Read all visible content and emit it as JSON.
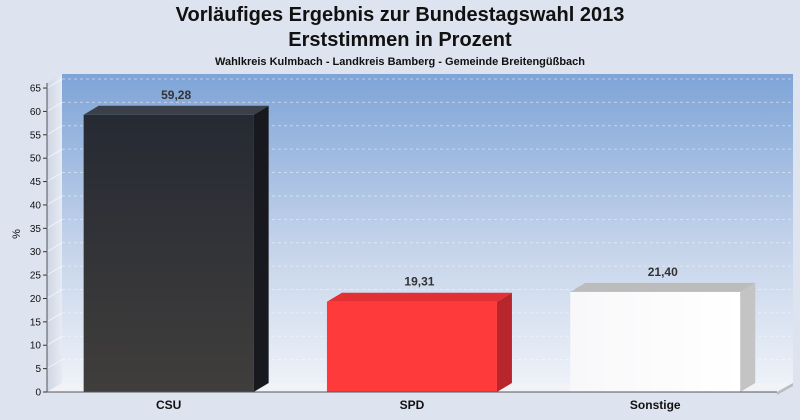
{
  "chart_data": {
    "type": "bar",
    "title": "Vorläufiges Ergebnis zur Bundestagswahl 2013",
    "title2": "Erststimmen in Prozent",
    "subtitle": "Wahlkreis Kulmbach - Landkreis Bamberg - Gemeinde Breitengüßbach",
    "ylabel": "%",
    "ylim": [
      0,
      68
    ],
    "yticks": [
      "0",
      "5",
      "10",
      "15",
      "20",
      "25",
      "30",
      "35",
      "40",
      "45",
      "50",
      "55",
      "60",
      "65"
    ],
    "categories": [
      "CSU",
      "SPD",
      "Sonstige"
    ],
    "values": [
      59.28,
      19.31,
      21.4
    ],
    "value_labels": [
      "59,28",
      "19,31",
      "21,40"
    ],
    "colors": [
      "#2b2f36",
      "#ff3a3a",
      "#f6f6f8"
    ],
    "grid": true
  }
}
